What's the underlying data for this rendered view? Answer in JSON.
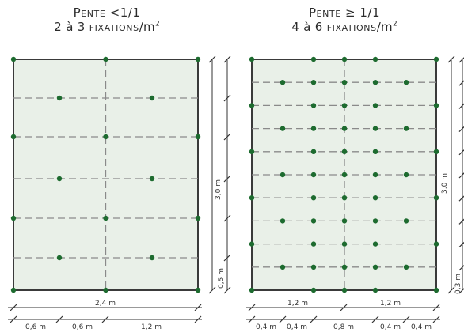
{
  "panels": [
    {
      "id": "left",
      "title_parts": [
        "P",
        "ENTE",
        " <1/1"
      ],
      "subtitle_parts": [
        "2 à 3 ",
        "FIXATIONS",
        "/m",
        "2"
      ],
      "total_width_label": "2,4 m",
      "height_label": "3,0 m",
      "spacing_label": "0,5 m",
      "bottom_labels": [
        "0,6 m",
        "0,6 m",
        "1,2 m"
      ]
    },
    {
      "id": "right",
      "title_parts": [
        "P",
        "ENTE",
        " ≥ 1/1"
      ],
      "subtitle_parts": [
        "4 à 6 ",
        "FIXATIONS",
        "/m",
        "2"
      ],
      "top_labels": [
        "1,2 m",
        "1,2 m"
      ],
      "height_label": "3,0 m",
      "spacing_label": "0,3 m",
      "bottom_labels": [
        "0,4 m",
        "0,4 m",
        "0,8 m",
        "0,4 m",
        "0,4 m"
      ]
    }
  ],
  "colors": {
    "panel_fill": "#e9f0e8",
    "frame": "#3a3a3a",
    "dash": "#8a8a8a",
    "dot": "#1d6b2f",
    "dim": "#333333"
  }
}
